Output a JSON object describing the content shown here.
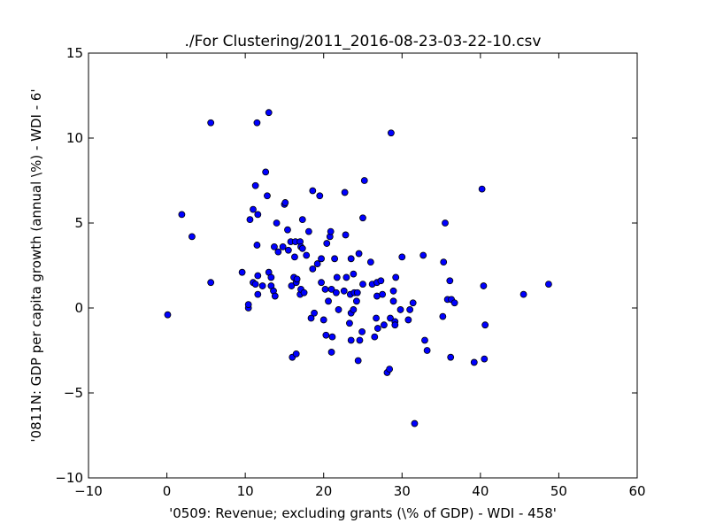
{
  "chart_data": {
    "type": "scatter",
    "title": "./For Clustering/2011_2016-08-23-03-22-10.csv",
    "xlabel": "'0509: Revenue; excluding grants  (\\% of GDP) - WDI - 458'",
    "ylabel": "'0811N: GDP per capita growth  (annual \\%) - WDI - 6'",
    "xlim": [
      -10,
      60
    ],
    "ylim": [
      -10,
      15
    ],
    "xticks": [
      -10,
      0,
      10,
      20,
      30,
      40,
      50,
      60
    ],
    "yticks": [
      -10,
      -5,
      0,
      5,
      10,
      15
    ],
    "xtick_labels": [
      "−10",
      "0",
      "10",
      "20",
      "30",
      "40",
      "50",
      "60"
    ],
    "ytick_labels": [
      "−10",
      "−5",
      "0",
      "5",
      "10",
      "15"
    ],
    "grid": false,
    "marker_color": "#0000ff",
    "marker_edge_color": "#000000",
    "points": [
      {
        "x": 0.1,
        "y": -0.4
      },
      {
        "x": 1.9,
        "y": 5.5
      },
      {
        "x": 3.2,
        "y": 4.2
      },
      {
        "x": 5.6,
        "y": 10.9
      },
      {
        "x": 5.6,
        "y": 1.5
      },
      {
        "x": 9.6,
        "y": 2.1
      },
      {
        "x": 10.4,
        "y": 0.0
      },
      {
        "x": 10.4,
        "y": 0.2
      },
      {
        "x": 10.6,
        "y": 5.2
      },
      {
        "x": 11.0,
        "y": 5.8
      },
      {
        "x": 11.0,
        "y": 1.5
      },
      {
        "x": 11.3,
        "y": 1.4
      },
      {
        "x": 11.3,
        "y": 7.2
      },
      {
        "x": 11.5,
        "y": 10.9
      },
      {
        "x": 11.5,
        "y": 3.7
      },
      {
        "x": 11.6,
        "y": 5.5
      },
      {
        "x": 11.6,
        "y": 1.9
      },
      {
        "x": 11.6,
        "y": 0.8
      },
      {
        "x": 12.2,
        "y": 1.3
      },
      {
        "x": 12.6,
        "y": 8.0
      },
      {
        "x": 12.8,
        "y": 6.6
      },
      {
        "x": 13.0,
        "y": 11.5
      },
      {
        "x": 13.0,
        "y": 2.1
      },
      {
        "x": 13.3,
        "y": 1.3
      },
      {
        "x": 13.3,
        "y": 1.8
      },
      {
        "x": 13.6,
        "y": 1.0
      },
      {
        "x": 13.7,
        "y": 3.6
      },
      {
        "x": 13.8,
        "y": 0.7
      },
      {
        "x": 14.0,
        "y": 5.0
      },
      {
        "x": 14.2,
        "y": 3.3
      },
      {
        "x": 14.8,
        "y": 3.6
      },
      {
        "x": 15.0,
        "y": 6.1
      },
      {
        "x": 15.1,
        "y": 6.2
      },
      {
        "x": 15.4,
        "y": 4.6
      },
      {
        "x": 15.5,
        "y": 3.4
      },
      {
        "x": 15.8,
        "y": 3.9
      },
      {
        "x": 15.9,
        "y": 1.3
      },
      {
        "x": 16.0,
        "y": -2.9
      },
      {
        "x": 16.2,
        "y": 1.8
      },
      {
        "x": 16.3,
        "y": 3.0
      },
      {
        "x": 16.4,
        "y": 3.9
      },
      {
        "x": 16.5,
        "y": -2.7
      },
      {
        "x": 16.5,
        "y": 1.5
      },
      {
        "x": 16.6,
        "y": 1.7
      },
      {
        "x": 17.0,
        "y": 3.9
      },
      {
        "x": 17.0,
        "y": 0.8
      },
      {
        "x": 17.1,
        "y": 3.6
      },
      {
        "x": 17.1,
        "y": 1.1
      },
      {
        "x": 17.3,
        "y": 5.2
      },
      {
        "x": 17.3,
        "y": 3.5
      },
      {
        "x": 17.5,
        "y": 0.9
      },
      {
        "x": 17.8,
        "y": 3.1
      },
      {
        "x": 18.1,
        "y": 4.5
      },
      {
        "x": 18.4,
        "y": -0.6
      },
      {
        "x": 18.6,
        "y": 2.3
      },
      {
        "x": 18.6,
        "y": 6.9
      },
      {
        "x": 18.8,
        "y": -0.3
      },
      {
        "x": 19.2,
        "y": 2.6
      },
      {
        "x": 19.5,
        "y": 6.6
      },
      {
        "x": 19.7,
        "y": 1.5
      },
      {
        "x": 19.7,
        "y": 2.9
      },
      {
        "x": 20.0,
        "y": -0.7
      },
      {
        "x": 20.2,
        "y": 1.1
      },
      {
        "x": 20.3,
        "y": -1.6
      },
      {
        "x": 20.4,
        "y": 3.8
      },
      {
        "x": 20.6,
        "y": 0.4
      },
      {
        "x": 20.8,
        "y": 4.2
      },
      {
        "x": 20.9,
        "y": 4.5
      },
      {
        "x": 21.0,
        "y": 1.1
      },
      {
        "x": 21.0,
        "y": -2.6
      },
      {
        "x": 21.1,
        "y": -1.7
      },
      {
        "x": 21.4,
        "y": 2.9
      },
      {
        "x": 21.6,
        "y": 0.9
      },
      {
        "x": 21.7,
        "y": 1.8
      },
      {
        "x": 21.9,
        "y": -0.1
      },
      {
        "x": 22.6,
        "y": 1.0
      },
      {
        "x": 22.7,
        "y": 6.8
      },
      {
        "x": 22.8,
        "y": 4.3
      },
      {
        "x": 22.9,
        "y": 1.8
      },
      {
        "x": 23.3,
        "y": -0.9
      },
      {
        "x": 23.4,
        "y": 0.8
      },
      {
        "x": 23.5,
        "y": -1.9
      },
      {
        "x": 23.5,
        "y": -0.3
      },
      {
        "x": 23.5,
        "y": 2.9
      },
      {
        "x": 23.8,
        "y": -0.1
      },
      {
        "x": 23.8,
        "y": 2.0
      },
      {
        "x": 23.9,
        "y": 0.9
      },
      {
        "x": 24.2,
        "y": 0.4
      },
      {
        "x": 24.3,
        "y": 0.9
      },
      {
        "x": 24.4,
        "y": -3.1
      },
      {
        "x": 24.5,
        "y": 3.2
      },
      {
        "x": 24.6,
        "y": -1.9
      },
      {
        "x": 24.9,
        "y": -1.4
      },
      {
        "x": 25.0,
        "y": 1.4
      },
      {
        "x": 25.0,
        "y": 5.3
      },
      {
        "x": 25.2,
        "y": 7.5
      },
      {
        "x": 26.0,
        "y": 2.7
      },
      {
        "x": 26.2,
        "y": 1.4
      },
      {
        "x": 26.5,
        "y": -1.7
      },
      {
        "x": 26.7,
        "y": -0.6
      },
      {
        "x": 26.8,
        "y": 0.7
      },
      {
        "x": 26.8,
        "y": 1.5
      },
      {
        "x": 26.9,
        "y": -1.2
      },
      {
        "x": 27.3,
        "y": 1.6
      },
      {
        "x": 27.5,
        "y": 0.8
      },
      {
        "x": 27.7,
        "y": -1.0
      },
      {
        "x": 28.1,
        "y": -3.8
      },
      {
        "x": 28.4,
        "y": -3.6
      },
      {
        "x": 28.5,
        "y": -0.6
      },
      {
        "x": 28.6,
        "y": 10.3
      },
      {
        "x": 28.9,
        "y": 0.4
      },
      {
        "x": 28.9,
        "y": 1.0
      },
      {
        "x": 29.1,
        "y": -0.8
      },
      {
        "x": 29.1,
        "y": -1.0
      },
      {
        "x": 29.2,
        "y": 1.8
      },
      {
        "x": 29.8,
        "y": -0.1
      },
      {
        "x": 30.0,
        "y": 3.0
      },
      {
        "x": 30.8,
        "y": -0.7
      },
      {
        "x": 31.0,
        "y": -0.1
      },
      {
        "x": 31.4,
        "y": 0.3
      },
      {
        "x": 31.6,
        "y": -6.8
      },
      {
        "x": 32.7,
        "y": 3.1
      },
      {
        "x": 32.9,
        "y": -1.9
      },
      {
        "x": 33.2,
        "y": -2.5
      },
      {
        "x": 35.2,
        "y": -0.5
      },
      {
        "x": 35.3,
        "y": 2.7
      },
      {
        "x": 35.5,
        "y": 5.0
      },
      {
        "x": 35.8,
        "y": 0.5
      },
      {
        "x": 36.1,
        "y": 1.6
      },
      {
        "x": 36.2,
        "y": -2.9
      },
      {
        "x": 36.3,
        "y": 0.5
      },
      {
        "x": 36.7,
        "y": 0.3
      },
      {
        "x": 39.2,
        "y": -3.2
      },
      {
        "x": 40.2,
        "y": 7.0
      },
      {
        "x": 40.4,
        "y": 1.3
      },
      {
        "x": 40.5,
        "y": -3.0
      },
      {
        "x": 40.6,
        "y": -1.0
      },
      {
        "x": 45.5,
        "y": 0.8
      },
      {
        "x": 48.7,
        "y": 1.4
      }
    ]
  }
}
